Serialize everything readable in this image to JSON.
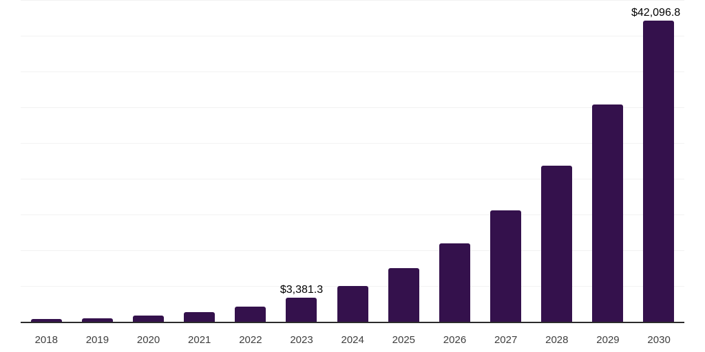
{
  "chart_data": {
    "type": "bar",
    "title": "",
    "categories": [
      "2018",
      "2019",
      "2020",
      "2021",
      "2022",
      "2023",
      "2024",
      "2025",
      "2026",
      "2027",
      "2028",
      "2029",
      "2030"
    ],
    "values": [
      340,
      480,
      820,
      1350,
      2100,
      3381.3,
      5000,
      7460,
      11000,
      15600,
      21800,
      30400,
      42096.8
    ],
    "value_labels": [
      "",
      "",
      "",
      "",
      "",
      "$3,381.3",
      "",
      "",
      "",
      "",
      "",
      "",
      "$42,096.8"
    ],
    "xlabel": "",
    "ylabel": "",
    "ylim": [
      0,
      45000
    ],
    "gridline_step": 5000,
    "grid": "horizontal-only",
    "y_tick_labels_visible": false,
    "legend_position": "none",
    "colors": {
      "bar": "#34114c",
      "gridline": "#f2f2f2",
      "axis_line": "#2b2b2b",
      "tick_label": "#3e3e3e",
      "value_label": "#000000",
      "background": "#ffffff"
    }
  }
}
